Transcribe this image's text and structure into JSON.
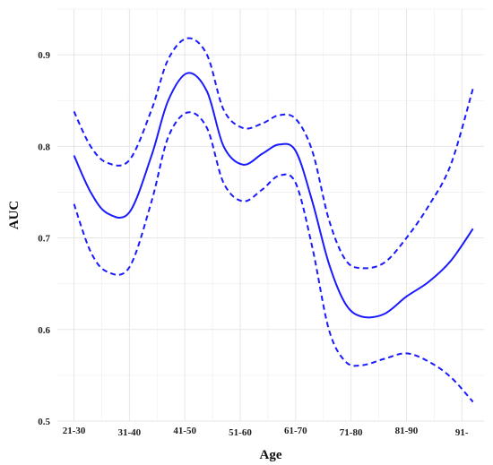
{
  "chart_data": {
    "type": "line",
    "xlabel": "Age",
    "ylabel": "AUC",
    "categories": [
      "21-30",
      "31-40",
      "41-50",
      "51-60",
      "61-70",
      "71-80",
      "81-90",
      "91-"
    ],
    "x_tick_positions": [
      21,
      31,
      41,
      51,
      61,
      71,
      81,
      91
    ],
    "ylim": [
      0.5,
      0.95
    ],
    "yticks": [
      0.5,
      0.6,
      0.7,
      0.8,
      0.9
    ],
    "grid": true,
    "series": [
      {
        "style": "solid",
        "points": [
          [
            21,
            0.79
          ],
          [
            24,
            0.75
          ],
          [
            27,
            0.727
          ],
          [
            31,
            0.728
          ],
          [
            35,
            0.79
          ],
          [
            38,
            0.85
          ],
          [
            41.5,
            0.88
          ],
          [
            45,
            0.86
          ],
          [
            48,
            0.8
          ],
          [
            51.5,
            0.78
          ],
          [
            55,
            0.792
          ],
          [
            58,
            0.802
          ],
          [
            61,
            0.795
          ],
          [
            64,
            0.74
          ],
          [
            67,
            0.672
          ],
          [
            70,
            0.628
          ],
          [
            73,
            0.614
          ],
          [
            77,
            0.617
          ],
          [
            81,
            0.636
          ],
          [
            85,
            0.652
          ],
          [
            89,
            0.675
          ],
          [
            93,
            0.71
          ]
        ]
      },
      {
        "style": "dashed",
        "points": [
          [
            21,
            0.838
          ],
          [
            24,
            0.8
          ],
          [
            27,
            0.782
          ],
          [
            31,
            0.785
          ],
          [
            35,
            0.84
          ],
          [
            38,
            0.895
          ],
          [
            41.5,
            0.918
          ],
          [
            45,
            0.9
          ],
          [
            48,
            0.84
          ],
          [
            51.5,
            0.82
          ],
          [
            55,
            0.825
          ],
          [
            58,
            0.834
          ],
          [
            61,
            0.83
          ],
          [
            64,
            0.795
          ],
          [
            67,
            0.72
          ],
          [
            70,
            0.676
          ],
          [
            73,
            0.667
          ],
          [
            77,
            0.673
          ],
          [
            81,
            0.7
          ],
          [
            85,
            0.735
          ],
          [
            89,
            0.78
          ],
          [
            93,
            0.863
          ]
        ]
      },
      {
        "style": "dashed",
        "points": [
          [
            21,
            0.737
          ],
          [
            24,
            0.685
          ],
          [
            27,
            0.663
          ],
          [
            31,
            0.668
          ],
          [
            35,
            0.74
          ],
          [
            38,
            0.81
          ],
          [
            41.5,
            0.837
          ],
          [
            45,
            0.82
          ],
          [
            48,
            0.76
          ],
          [
            51.5,
            0.74
          ],
          [
            55,
            0.753
          ],
          [
            58,
            0.768
          ],
          [
            61,
            0.76
          ],
          [
            64,
            0.69
          ],
          [
            67,
            0.6
          ],
          [
            70,
            0.565
          ],
          [
            73,
            0.561
          ],
          [
            77,
            0.568
          ],
          [
            81,
            0.574
          ],
          [
            85,
            0.565
          ],
          [
            89,
            0.548
          ],
          [
            93,
            0.521
          ]
        ]
      }
    ],
    "line_color": "#1a1aff"
  }
}
